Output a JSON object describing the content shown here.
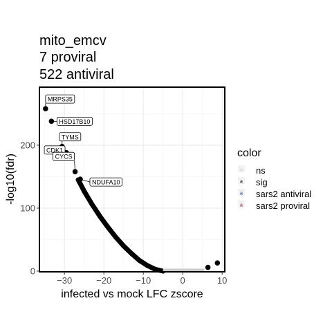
{
  "chart_data": {
    "type": "scatter",
    "title_lines": [
      "mito_emcv",
      "7 proviral",
      "522 antiviral"
    ],
    "xlabel": "infected vs mock LFC zscore",
    "ylabel": "-log10(fdr)",
    "xlim": [
      -36,
      10.5
    ],
    "ylim": [
      0,
      290
    ],
    "x_ticks": [
      -30,
      -20,
      -10,
      0,
      10
    ],
    "x_tick_labels": [
      "−30",
      "−20",
      "−10",
      "0",
      "10"
    ],
    "y_ticks": [
      0,
      100,
      200
    ],
    "y_tick_labels": [
      "0",
      "100",
      "200"
    ],
    "grid": true,
    "legend": {
      "title": "color",
      "placement": "right",
      "entries": [
        {
          "label": "ns",
          "color": "#cccccc"
        },
        {
          "label": "sig",
          "color": "#000000"
        },
        {
          "label": "sars2 antiviral",
          "color": "#1f3a93"
        },
        {
          "label": "sars2 proviral",
          "color": "#8b1a3a"
        }
      ]
    },
    "curve": {
      "description": "dense band of sig points",
      "x": [
        -26.5,
        -25,
        -23,
        -21,
        -19,
        -17,
        -15,
        -13,
        -11,
        -9,
        -7,
        -5
      ],
      "y": [
        145,
        127,
        106,
        87,
        70,
        54,
        40,
        28,
        17,
        9,
        3,
        0
      ]
    },
    "ns_band": {
      "x": [
        -5,
        5.5
      ],
      "y": [
        0,
        4
      ]
    },
    "points": [
      {
        "x": -34.8,
        "y": 258,
        "label": "MRPS35"
      },
      {
        "x": -33.3,
        "y": 238,
        "label": "HSD17B10"
      },
      {
        "x": -30.6,
        "y": 198,
        "label": "TYMS"
      },
      {
        "x": -29.5,
        "y": 188,
        "label": "CDK1"
      },
      {
        "x": -27.3,
        "y": 158,
        "label": "CYCS"
      },
      {
        "x": -26.0,
        "y": 146,
        "label": "NDUFA10"
      },
      {
        "x": 6.4,
        "y": 6,
        "label": ""
      },
      {
        "x": 8.8,
        "y": 13,
        "label": ""
      }
    ],
    "colors": {
      "sig": "#000000",
      "ns": "#cccccc",
      "grid_major": "#ebebeb",
      "grid_minor": "#f5f5f5"
    }
  }
}
